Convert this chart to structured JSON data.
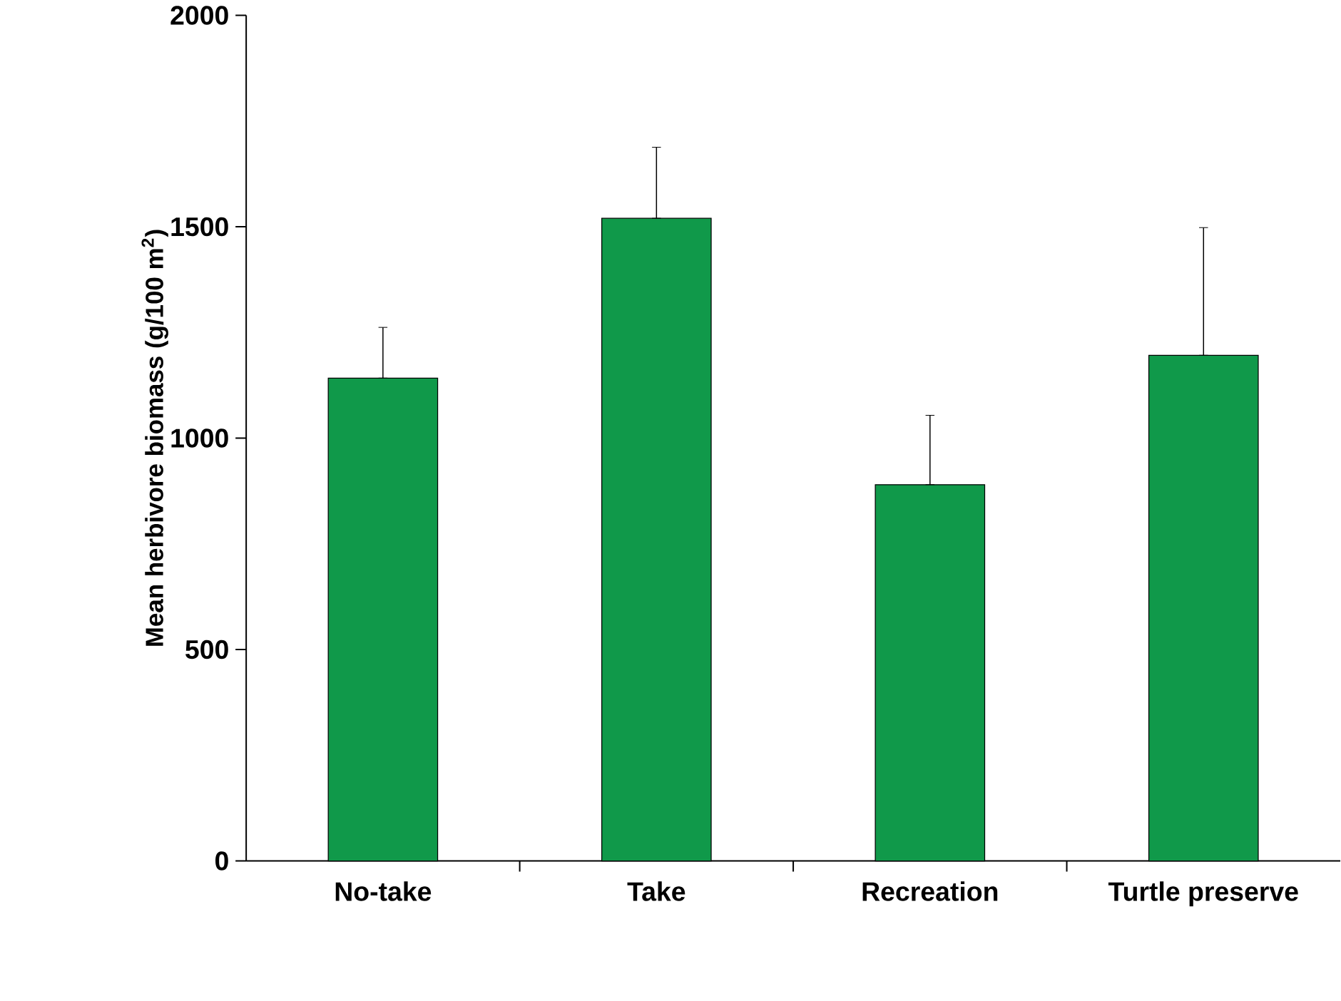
{
  "chart_data": {
    "type": "bar",
    "ylabel": "Mean herbivore biomass (g/100 m$^{2}$)",
    "categories": [
      "No-take",
      "Take",
      "Recreation",
      "Turtle preserve"
    ],
    "values": [
      1142,
      1520,
      890,
      1196
    ],
    "errors": [
      [
        1142,
        1262
      ],
      [
        1520,
        1688
      ],
      [
        890,
        1054
      ],
      [
        1196,
        1498
      ]
    ],
    "color": "#10994a",
    "ylim": [
      0,
      2000
    ],
    "yticks": [
      0,
      500,
      1000,
      1500,
      2000
    ]
  }
}
